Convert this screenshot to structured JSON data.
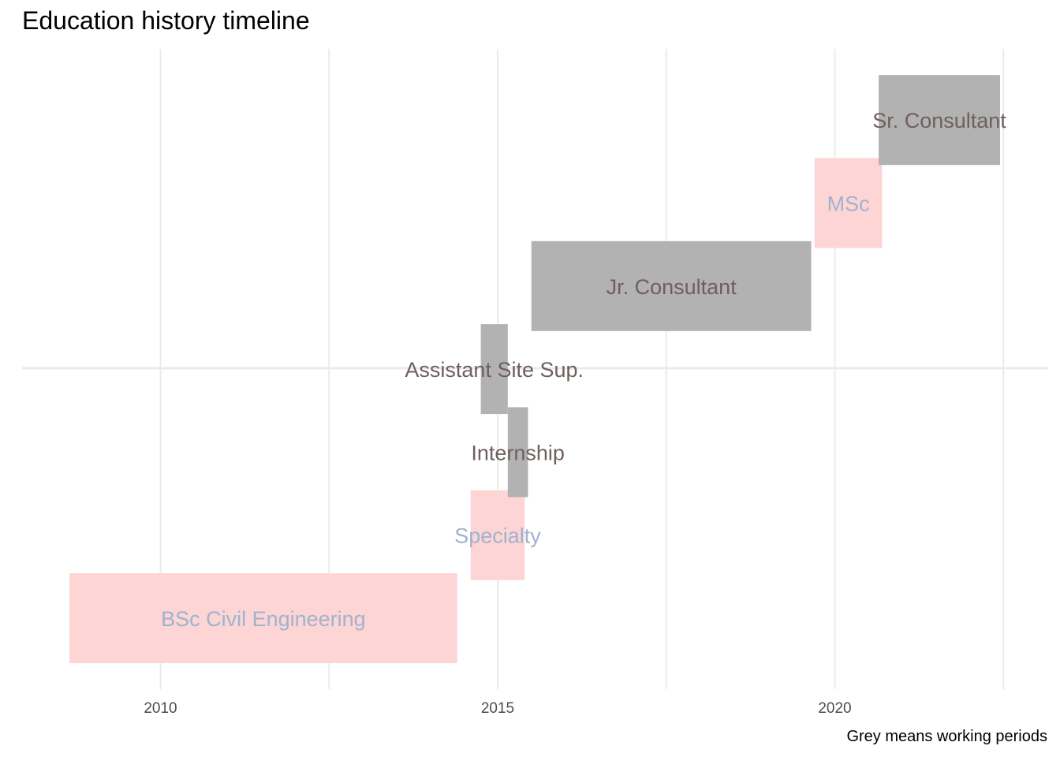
{
  "title": "Education history timeline",
  "caption": "Grey means working periods",
  "colors": {
    "education": "#fcd5d4",
    "work": "#b2b2b2",
    "education_label": "#9fb3cf",
    "work_label": "#6f5f5e",
    "grid": "#ebebeb"
  },
  "chart_data": {
    "type": "bar",
    "orientation": "horizontal-timeline",
    "title": "Education history timeline",
    "caption": "Grey means working periods",
    "xlabel": "",
    "ylabel": "",
    "xlim": [
      2007.95,
      2023.25
    ],
    "x_ticks": [
      2010,
      2015,
      2020
    ],
    "grid": true,
    "legend": "none",
    "series": [
      {
        "label": "BSc Civil Engineering",
        "type": "education",
        "start": 2008.65,
        "end": 2014.4
      },
      {
        "label": "Specialty",
        "type": "education",
        "start": 2014.6,
        "end": 2015.4
      },
      {
        "label": "Internship",
        "type": "work",
        "start": 2015.15,
        "end": 2015.45
      },
      {
        "label": "Assistant Site Sup.",
        "type": "work",
        "start": 2014.75,
        "end": 2015.15
      },
      {
        "label": "Jr. Consultant",
        "type": "work",
        "start": 2015.5,
        "end": 2019.65
      },
      {
        "label": "MSc",
        "type": "education",
        "start": 2019.7,
        "end": 2020.7
      },
      {
        "label": "Sr. Consultant",
        "type": "work",
        "start": 2020.65,
        "end": 2022.45
      }
    ]
  }
}
